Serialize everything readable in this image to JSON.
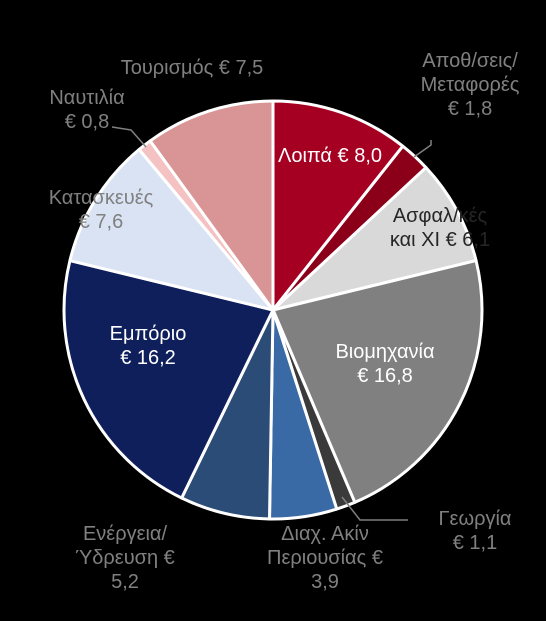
{
  "chart_data": {
    "type": "pie",
    "title": "",
    "unit": "€",
    "start_angle_deg": 0,
    "direction": "clockwise",
    "slices": [
      {
        "label_lines": [
          "Λοιπά € 8,0"
        ],
        "value": 8.0,
        "color": "#a50021",
        "label_color": "#ffffff"
      },
      {
        "label_lines": [
          "Αποθ/σεις/",
          "Μεταφορές",
          "€ 1,8"
        ],
        "value": 1.8,
        "color": "#8b0018",
        "label_color": "#808080"
      },
      {
        "label_lines": [
          "Ασφαλ/κές",
          "και ΧΙ € 6,1"
        ],
        "value": 6.1,
        "color": "#d9d9d9",
        "label_color": "#262626"
      },
      {
        "label_lines": [
          "Βιομηχανία",
          "€ 16,8"
        ],
        "value": 16.8,
        "color": "#808080",
        "label_color": "#ffffff"
      },
      {
        "label_lines": [
          "Γεωργία",
          "€ 1,1"
        ],
        "value": 1.1,
        "color": "#3a3a3a",
        "label_color": "#808080"
      },
      {
        "label_lines": [
          "Διαχ. Ακίν",
          "Περιουσίας €",
          "3,9"
        ],
        "value": 3.9,
        "color": "#3a6aa5",
        "label_color": "#808080"
      },
      {
        "label_lines": [
          "Ενέργεια/",
          "Ύδρευση €",
          "5,2"
        ],
        "value": 5.2,
        "color": "#2b4c76",
        "label_color": "#808080"
      },
      {
        "label_lines": [
          "Εμπόριο",
          "€ 16,2"
        ],
        "value": 16.2,
        "color": "#0f1f5c",
        "label_color": "#ffffff"
      },
      {
        "label_lines": [
          "Κατασκευές",
          "€ 7,6"
        ],
        "value": 7.6,
        "color": "#dae3f3",
        "label_color": "#808080"
      },
      {
        "label_lines": [
          "Ναυτιλία",
          "€ 0,8"
        ],
        "value": 0.8,
        "color": "#f4c2c2",
        "label_color": "#808080"
      },
      {
        "label_lines": [
          "Τουρισμός € 7,5"
        ],
        "value": 7.5,
        "color": "#d99595",
        "label_color": "#808080"
      }
    ],
    "legend": "none",
    "slice_border_color": "#ffffff"
  }
}
